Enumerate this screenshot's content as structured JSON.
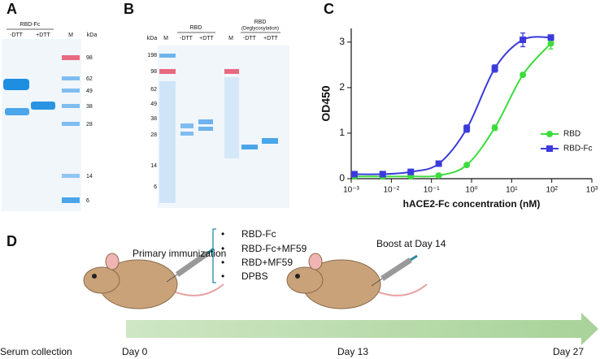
{
  "panels": {
    "a": "A",
    "b": "B",
    "c": "C",
    "d": "D"
  },
  "gel_a": {
    "group": "RBD-Fc",
    "lanes": [
      "-DTT",
      "+DTT",
      "M"
    ],
    "unit": "kDa",
    "markers": [
      "98",
      "62",
      "49",
      "38",
      "28",
      "14",
      "6"
    ]
  },
  "gel_b": {
    "unit": "kDa",
    "lanes": [
      "M",
      "-DTT",
      "+DTT",
      "M",
      "-DTT",
      "+DTT"
    ],
    "group1": "RBD",
    "group2": "RBD",
    "group2_note": "(Deglycosylation)",
    "markers": [
      "198",
      "98",
      "62",
      "49",
      "38",
      "28",
      "14",
      "6"
    ]
  },
  "chart_data": {
    "type": "line",
    "xlabel": "hACE2-Fc concentration (nM)",
    "ylabel": "OD450",
    "xscale": "log",
    "x": [
      0.0012,
      0.0061,
      0.0305,
      0.152,
      0.76,
      3.8,
      19,
      95
    ],
    "series": [
      {
        "name": "RBD",
        "color": "#3ddc3d",
        "marker": "circle",
        "values": [
          0.05,
          0.05,
          0.05,
          0.07,
          0.3,
          1.12,
          2.28,
          2.97
        ],
        "errors": [
          0.01,
          0.01,
          0.01,
          0.01,
          0.03,
          0.06,
          0.04,
          0.12
        ]
      },
      {
        "name": "RBD-Fc",
        "color": "#3b3bdc",
        "marker": "square",
        "values": [
          0.1,
          0.1,
          0.15,
          0.33,
          1.1,
          2.42,
          3.05,
          3.1
        ],
        "errors": [
          0.02,
          0.02,
          0.03,
          0.03,
          0.08,
          0.08,
          0.15,
          0.04
        ]
      }
    ],
    "xlim": [
      0.001,
      1000
    ],
    "xticks": [
      {
        "value": 0.001,
        "label": "10⁻³"
      },
      {
        "value": 0.01,
        "label": "10⁻²"
      },
      {
        "value": 0.1,
        "label": "10⁻¹"
      },
      {
        "value": 1,
        "label": "10⁰"
      },
      {
        "value": 10,
        "label": "10¹"
      },
      {
        "value": 100,
        "label": "10²"
      },
      {
        "value": 1000,
        "label": "10³"
      }
    ],
    "ylim": [
      0,
      3.3
    ],
    "yticks": [
      0,
      1,
      2,
      3
    ],
    "legend": "center right"
  },
  "timeline": {
    "primary": "Primary immunization",
    "groups": [
      "RBD-Fc",
      "RBD-Fc+MF59",
      "RBD+MF59",
      "DPBS"
    ],
    "bullet": "•",
    "boost": "Boost at Day 14",
    "start": "Serum collection",
    "days": [
      "Day 0",
      "Day 13",
      "Day 27"
    ]
  }
}
